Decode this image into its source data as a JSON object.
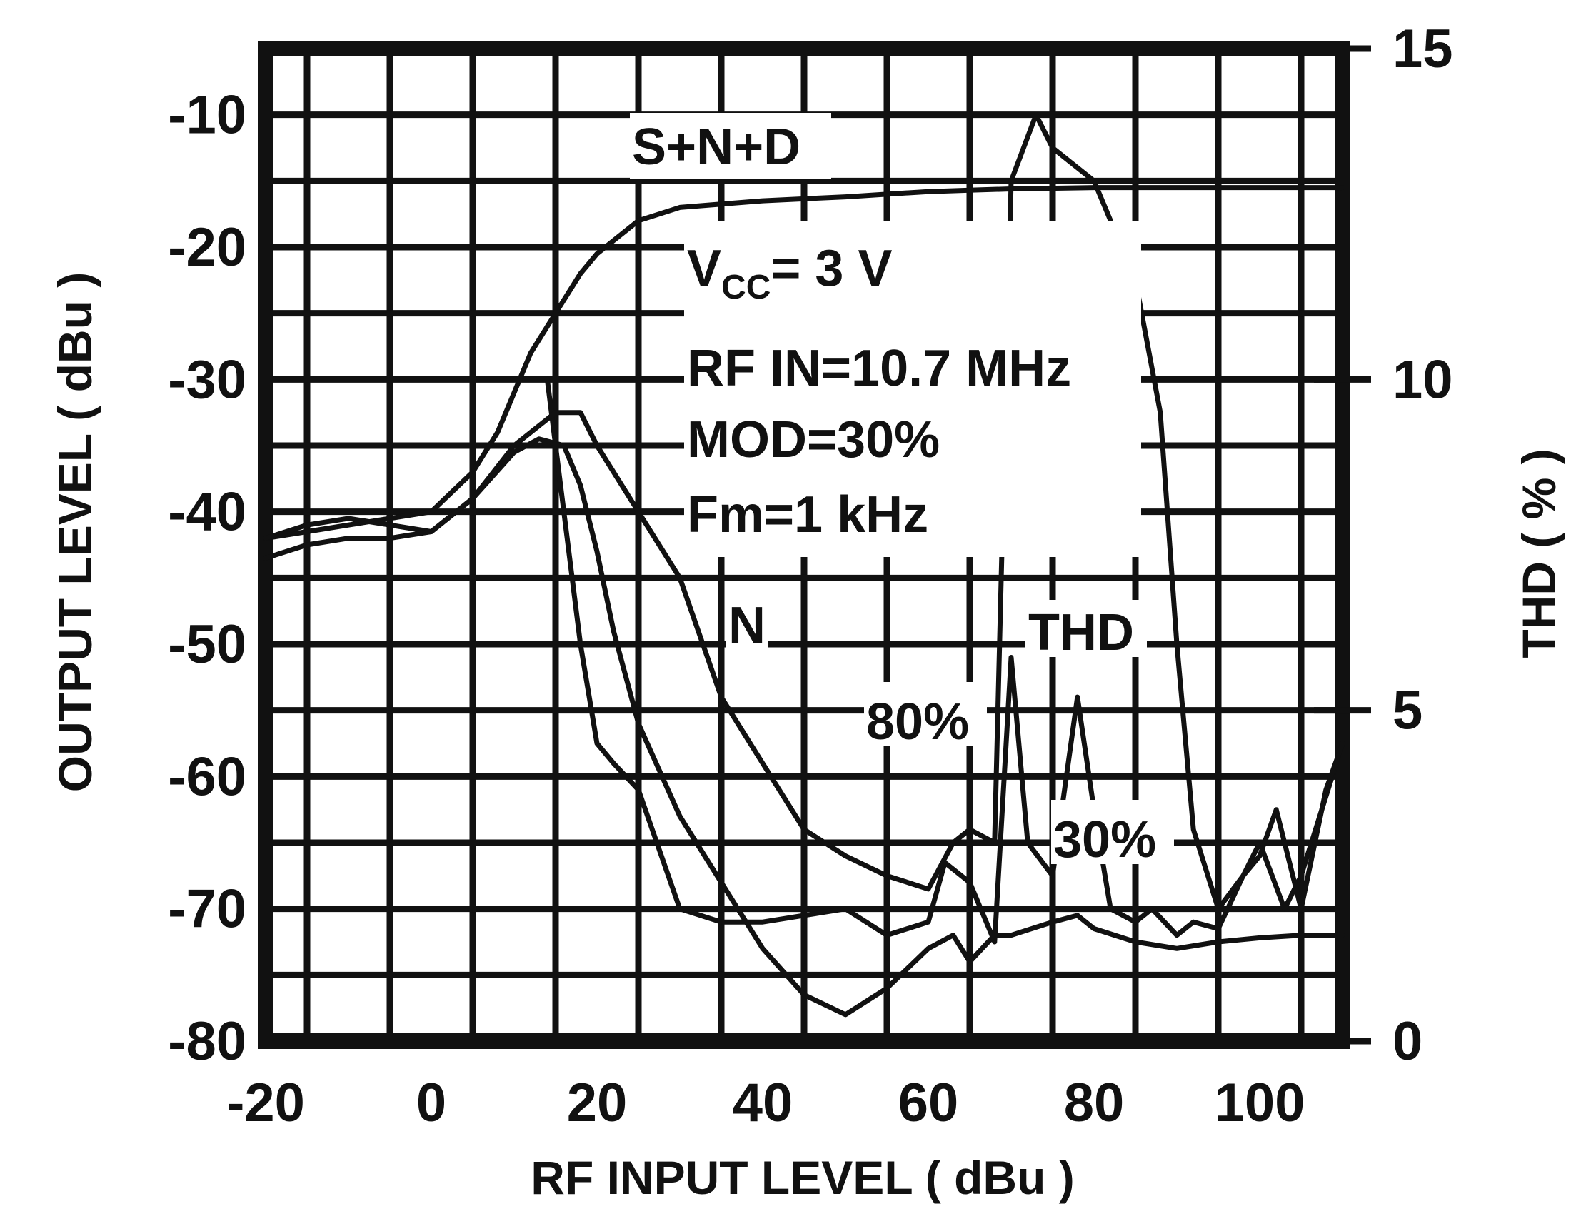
{
  "chart_data": {
    "type": "line",
    "xlabel": "RF INPUT LEVEL ( dBu )",
    "ylabel": "OUTPUT LEVEL ( dBu )",
    "y2label": "THD ( % )",
    "xlim": [
      -20,
      110
    ],
    "ylim": [
      -80,
      -5
    ],
    "y2lim": [
      0,
      15
    ],
    "xticks": [
      "-20",
      "0",
      "20",
      "40",
      "60",
      "80",
      "100"
    ],
    "yticks": [
      "-10",
      "-20",
      "-30",
      "-40",
      "-50",
      "-60",
      "-70",
      "-80"
    ],
    "y2ticks": [
      "15",
      "10",
      "5",
      "0"
    ],
    "grid": true,
    "annotations": {
      "snd": "S+N+D",
      "vcc": "V",
      "vcc_sub": "CC",
      "vcc_val": "= 3 V",
      "rfin": "RF IN=10.7 MHz",
      "mod": "MOD=30%",
      "fm": "Fm=1 kHz",
      "n": "N",
      "thd": "THD",
      "p80": "80%",
      "p30": "30%"
    },
    "series": [
      {
        "name": "S+N+D",
        "axis": "left",
        "x": [
          -20,
          -15,
          -10,
          -5,
          0,
          5,
          8,
          10,
          12,
          15,
          18,
          20,
          25,
          30,
          40,
          50,
          55,
          60,
          65,
          70,
          80,
          90,
          100,
          110
        ],
        "y": [
          -42,
          -41.5,
          -41,
          -40.5,
          -40,
          -37,
          -34,
          -31,
          -28,
          -25,
          -22,
          -20.5,
          -18,
          -17,
          -16.5,
          -16.2,
          -16,
          -15.8,
          -15.7,
          -15.6,
          -15.5,
          -15.5,
          -15.5,
          -15.5
        ]
      },
      {
        "name": "N",
        "axis": "left",
        "x": [
          -20,
          -15,
          -10,
          -5,
          0,
          5,
          10,
          13,
          16,
          18,
          20,
          22,
          25,
          30,
          35,
          40,
          45,
          50,
          55,
          60,
          63,
          65,
          68,
          70,
          75,
          78,
          80,
          85,
          90,
          95,
          100,
          105,
          110
        ],
        "y": [
          -42,
          -41,
          -40.5,
          -41,
          -41.5,
          -39,
          -35.5,
          -34.5,
          -35,
          -38,
          -43,
          -49,
          -56,
          -63,
          -68,
          -73,
          -76.5,
          -78,
          -76,
          -73,
          -72,
          -74,
          -72,
          -72,
          -71,
          -70.5,
          -71.5,
          -72.5,
          -73,
          -72.5,
          -72.2,
          -72,
          -72
        ]
      },
      {
        "name": "THD 80%",
        "axis": "right",
        "x": [
          14,
          16,
          18,
          20,
          22,
          25,
          30,
          35,
          40,
          45,
          50,
          55,
          60,
          62,
          65,
          68,
          70,
          72,
          75,
          78,
          80,
          82,
          85,
          87,
          90,
          92,
          95,
          98,
          100,
          103,
          105,
          110
        ],
        "y": [
          10,
          8,
          6,
          4.5,
          4.2,
          3.8,
          2,
          1.8,
          1.8,
          1.9,
          2,
          1.6,
          1.8,
          2.7,
          2.4,
          1.5,
          5.8,
          3,
          2.5,
          5.2,
          3.5,
          2,
          1.8,
          2,
          1.6,
          1.8,
          1.7,
          2.5,
          3,
          2,
          2.5,
          4.5
        ]
      },
      {
        "name": "THD 30%",
        "axis": "right",
        "x": [
          -20,
          -15,
          -10,
          -5,
          0,
          5,
          10,
          15,
          18,
          20,
          25,
          30,
          35,
          40,
          45,
          50,
          55,
          60,
          63,
          65,
          68,
          70,
          73,
          75,
          80,
          85,
          88,
          90,
          92,
          95,
          98,
          100,
          102,
          105,
          108,
          110
        ],
        "y": [
          7.3,
          7.5,
          7.6,
          7.6,
          7.7,
          8.2,
          9,
          9.5,
          9.5,
          9,
          8,
          7,
          5.2,
          4.2,
          3.2,
          2.8,
          2.5,
          2.3,
          3,
          3.2,
          3,
          13,
          14,
          13.5,
          13,
          11.5,
          9.5,
          6,
          3.2,
          2,
          2.5,
          2.8,
          3.5,
          2,
          3.8,
          4.5
        ]
      }
    ]
  }
}
